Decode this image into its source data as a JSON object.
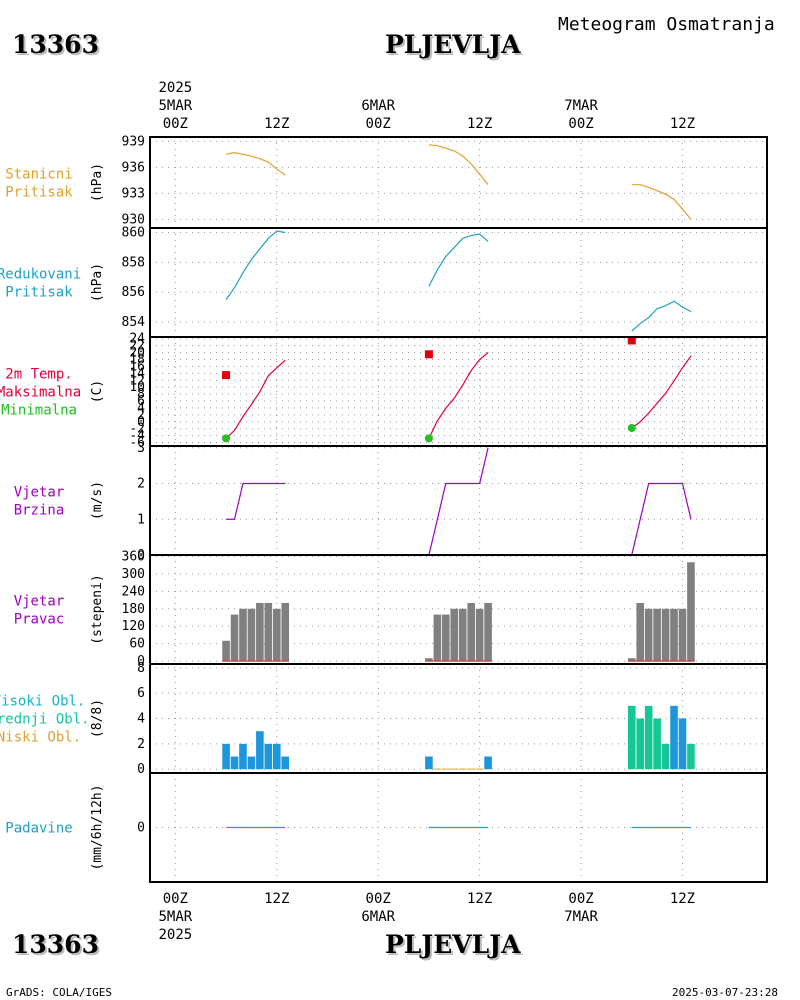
{
  "header": {
    "station_id": "13363",
    "station_name": "PLJEVLJA",
    "product_title": "Meteogram Osmatranja"
  },
  "footer": {
    "credit": "GrADS: COLA/IGES",
    "timestamp": "2025-03-07-23:28"
  },
  "time_axis": {
    "ticks": [
      {
        "hour": 0,
        "label": "00Z"
      },
      {
        "hour": 12,
        "label": "12Z"
      },
      {
        "hour": 24,
        "label": "00Z"
      },
      {
        "hour": 36,
        "label": "12Z"
      },
      {
        "hour": 48,
        "label": "00Z"
      },
      {
        "hour": 60,
        "label": "12Z"
      }
    ],
    "top_dates": [
      {
        "hour": 0,
        "label": "5MAR",
        "year": "2025"
      },
      {
        "hour": 24,
        "label": "6MAR",
        "year": ""
      },
      {
        "hour": 48,
        "label": "7MAR",
        "year": ""
      }
    ],
    "bottom_dates": [
      {
        "hour": 0,
        "label": "5MAR",
        "year": "2025"
      },
      {
        "hour": 24,
        "label": "6MAR",
        "year": ""
      },
      {
        "hour": 48,
        "label": "7MAR",
        "year": ""
      }
    ],
    "range_hours": [
      -3,
      70
    ]
  },
  "panels": [
    {
      "id": "station-pressure",
      "names": [
        {
          "text": "Stanicni",
          "color": "#e0a030"
        },
        {
          "text": "Pritisak",
          "color": "#e0a030"
        }
      ],
      "unit": "(hPa)"
    },
    {
      "id": "reduced-pressure",
      "names": [
        {
          "text": "Redukovani",
          "color": "#1ea0c8"
        },
        {
          "text": "Pritisak",
          "color": "#1ea0c8"
        }
      ],
      "unit": "(hPa)"
    },
    {
      "id": "temperature",
      "names": [
        {
          "text": "2m Temp.",
          "color": "#e0003c"
        },
        {
          "text": "Maksimalna",
          "color": "#e0003c"
        },
        {
          "text": "Minimalna",
          "color": "#22c022"
        }
      ],
      "unit": "(C)"
    },
    {
      "id": "wind-speed",
      "names": [
        {
          "text": "Vjetar",
          "color": "#a000c0"
        },
        {
          "text": "Brzina",
          "color": "#a000c0"
        }
      ],
      "unit": "(m/s)"
    },
    {
      "id": "wind-direction",
      "names": [
        {
          "text": "Vjetar",
          "color": "#a000c0"
        },
        {
          "text": "Pravac",
          "color": "#a000c0"
        }
      ],
      "unit": "(stepeni)"
    },
    {
      "id": "cloud-cover",
      "names": [
        {
          "text": "Visoki Obl.",
          "color": "#14b4c8"
        },
        {
          "text": "Srednji Obl.",
          "color": "#14c8a0"
        },
        {
          "text": "Niski Obl.",
          "color": "#e0a030"
        }
      ],
      "unit": "(8/8)"
    },
    {
      "id": "precipitation",
      "names": [
        {
          "text": "Padavine",
          "color": "#1ea0c8"
        }
      ],
      "unit": "(mm/6h/12h)"
    }
  ],
  "chart_data": [
    {
      "type": "line",
      "id": "station-pressure",
      "ylim": [
        929,
        939.5
      ],
      "yticks": [
        939,
        936,
        933,
        930
      ],
      "color": "#e0a030",
      "segments": [
        {
          "x": [
            6,
            7,
            8,
            9,
            10,
            11,
            12,
            13
          ],
          "y": [
            937.5,
            937.7,
            937.5,
            937.3,
            937.0,
            936.6,
            935.8,
            935.1
          ]
        },
        {
          "x": [
            30,
            31,
            32,
            33,
            34,
            35,
            36,
            37
          ],
          "y": [
            938.6,
            938.5,
            938.2,
            937.9,
            937.3,
            936.4,
            935.2,
            934.0
          ]
        },
        {
          "x": [
            54,
            55,
            56,
            57,
            58,
            59,
            60,
            61
          ],
          "y": [
            934.0,
            934.0,
            933.7,
            933.3,
            932.9,
            932.3,
            931.2,
            930.0
          ]
        }
      ]
    },
    {
      "type": "line",
      "id": "reduced-pressure",
      "ylim": [
        853,
        860.3
      ],
      "yticks": [
        860,
        858,
        856,
        854
      ],
      "color": "#1ea0c8",
      "segments": [
        {
          "x": [
            6,
            7,
            8,
            9,
            10,
            11,
            12,
            13
          ],
          "y": [
            855.5,
            856.3,
            857.3,
            858.2,
            858.9,
            859.6,
            860.1,
            860.0
          ]
        },
        {
          "x": [
            30,
            31,
            32,
            33,
            34,
            35,
            36,
            37
          ],
          "y": [
            856.4,
            857.5,
            858.4,
            859.0,
            859.6,
            859.8,
            859.9,
            859.4
          ]
        },
        {
          "x": [
            54,
            55,
            56,
            57,
            58,
            59,
            60,
            61
          ],
          "y": [
            853.4,
            853.9,
            854.3,
            854.9,
            855.1,
            855.4,
            855.0,
            854.7
          ]
        }
      ]
    },
    {
      "type": "line",
      "id": "temperature",
      "ylim": [
        -7,
        24.5
      ],
      "yticks": [
        24,
        22,
        20,
        18,
        16,
        14,
        12,
        10,
        8,
        6,
        4,
        2,
        0,
        -2,
        -4,
        -6
      ],
      "color": "#e0003c",
      "segments": [
        {
          "x": [
            6,
            7,
            8,
            9,
            10,
            11,
            12,
            13
          ],
          "y": [
            -4.8,
            -2.5,
            1.5,
            5.0,
            8.7,
            13.3,
            15.6,
            17.8
          ]
        },
        {
          "x": [
            30,
            31,
            32,
            33,
            34,
            35,
            36,
            37
          ],
          "y": [
            -4.8,
            0.3,
            3.9,
            6.8,
            10.6,
            14.8,
            18.0,
            20.0
          ]
        },
        {
          "x": [
            54,
            55,
            56,
            57,
            58,
            59,
            60,
            61
          ],
          "y": [
            -1.8,
            0.0,
            2.5,
            5.4,
            8.2,
            11.8,
            15.6,
            19.0
          ]
        }
      ],
      "max_points": [
        {
          "x": 6,
          "y": 13.5
        },
        {
          "x": 30,
          "y": 19.5
        },
        {
          "x": 54,
          "y": 23.5
        }
      ],
      "min_points": [
        {
          "x": 6,
          "y": -4.8
        },
        {
          "x": 30,
          "y": -4.8
        },
        {
          "x": 54,
          "y": -1.8
        }
      ]
    },
    {
      "type": "line",
      "id": "wind-speed",
      "ylim": [
        0,
        3.05
      ],
      "yticks": [
        3,
        2,
        1,
        0
      ],
      "color": "#a000c0",
      "segments": [
        {
          "x": [
            6,
            7,
            8,
            9,
            10,
            11,
            12,
            13
          ],
          "y": [
            1,
            1,
            2,
            2,
            2,
            2,
            2,
            2
          ]
        },
        {
          "x": [
            30,
            31,
            32,
            33,
            34,
            35,
            36,
            37
          ],
          "y": [
            0,
            1,
            2,
            2,
            2,
            2,
            2,
            3
          ]
        },
        {
          "x": [
            54,
            55,
            56,
            57,
            58,
            59,
            60,
            61
          ],
          "y": [
            0,
            1,
            2,
            2,
            2,
            2,
            2,
            1
          ]
        }
      ]
    },
    {
      "type": "bar",
      "id": "wind-direction",
      "ylim": [
        -10,
        365
      ],
      "yticks": [
        360,
        300,
        240,
        180,
        120,
        60,
        0
      ],
      "color": "#808080",
      "x": [
        6,
        7,
        8,
        9,
        10,
        11,
        12,
        13,
        30,
        31,
        32,
        33,
        34,
        35,
        36,
        37,
        54,
        55,
        56,
        57,
        58,
        59,
        60,
        61
      ],
      "values": [
        70,
        160,
        180,
        180,
        200,
        200,
        180,
        200,
        10,
        160,
        160,
        180,
        180,
        200,
        180,
        200,
        10,
        200,
        180,
        180,
        180,
        180,
        180,
        340
      ]
    },
    {
      "type": "bar",
      "id": "cloud-cover",
      "ylim": [
        -0.3,
        8.3
      ],
      "yticks": [
        8,
        6,
        4,
        2,
        0
      ],
      "series": [
        {
          "name": "Visoki Obl.",
          "color": "#1e96dc",
          "x": [
            6,
            7,
            8,
            9,
            10,
            11,
            12,
            13,
            30,
            37,
            59,
            60
          ],
          "values": [
            2,
            1,
            2,
            1,
            3,
            2,
            2,
            1,
            1,
            1,
            5,
            4
          ]
        },
        {
          "name": "Srednji Obl.",
          "color": "#14c896",
          "x": [
            54,
            55,
            56,
            57,
            58,
            61
          ],
          "values": [
            5,
            4,
            5,
            4,
            2,
            2
          ]
        },
        {
          "name": "Niski Obl.",
          "color": "#e0a030",
          "x": [
            31,
            32,
            33,
            34,
            35,
            36
          ],
          "values": [
            0.05,
            0.05,
            0.05,
            0.05,
            0.05,
            0.05
          ]
        }
      ]
    },
    {
      "type": "line",
      "id": "precipitation",
      "ylim": [
        -4,
        4
      ],
      "yticks": [
        0
      ],
      "color": "#1ea0c8",
      "segments": [
        {
          "x": [
            6,
            13
          ],
          "y": [
            0,
            0
          ]
        },
        {
          "x": [
            30,
            37
          ],
          "y": [
            0,
            0
          ]
        },
        {
          "x": [
            54,
            61
          ],
          "y": [
            0,
            0
          ]
        }
      ]
    }
  ]
}
